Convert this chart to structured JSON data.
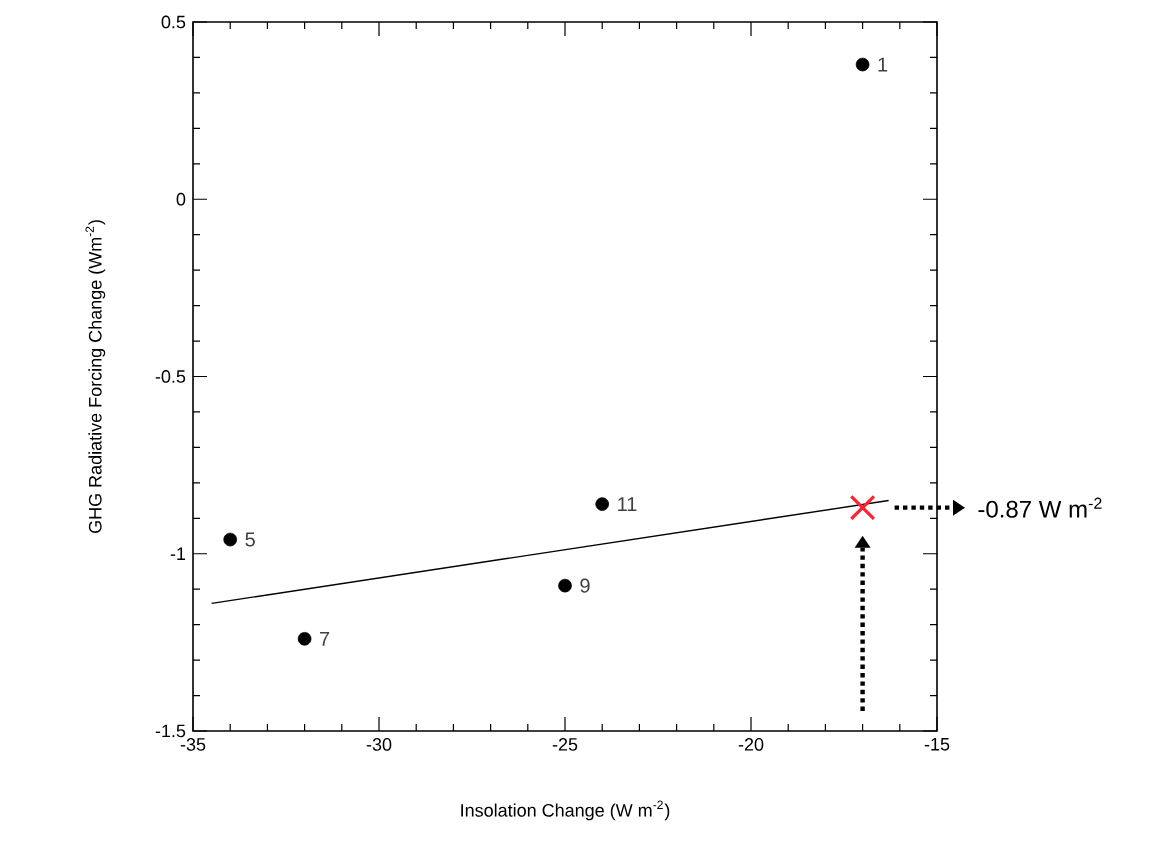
{
  "chart_data": {
    "type": "scatter",
    "xlabel": "Insolation Change (W m$^{-2}$)",
    "ylabel": "GHG Radiative Forcing Change (Wm$^{-2}$)",
    "xlim": [
      -35,
      -15
    ],
    "ylim": [
      -1.5,
      0.5
    ],
    "xticks": [
      -35,
      -30,
      -25,
      -20,
      -15
    ],
    "yticks": [
      -1.5,
      -1,
      -0.5,
      0,
      0.5
    ],
    "grid": false,
    "series": [
      {
        "marker": "circle",
        "color": "#000000",
        "x": [
          -17,
          -34,
          -32,
          -25,
          -24
        ],
        "values": [
          0.38,
          -0.96,
          -1.24,
          -1.09,
          -0.86
        ]
      },
      {
        "type": "line",
        "marker": "none",
        "color": "#000000",
        "x": [
          -34.5,
          -16.3
        ],
        "values": [
          -1.14,
          -0.85
        ]
      },
      {
        "marker": "cross",
        "color": "#ff2030",
        "x": [
          -17
        ],
        "values": [
          -0.87
        ]
      }
    ],
    "annotations": [
      {
        "text": "1",
        "x": -17,
        "y": 0.38
      },
      {
        "text": "5",
        "x": -34,
        "y": -0.96
      },
      {
        "text": "7",
        "x": -32,
        "y": -1.24
      },
      {
        "text": "9",
        "x": -25,
        "y": -1.09
      },
      {
        "text": "11",
        "x": -24,
        "y": -0.86
      },
      "-0.87 W m$^{-2}$"
    ]
  }
}
